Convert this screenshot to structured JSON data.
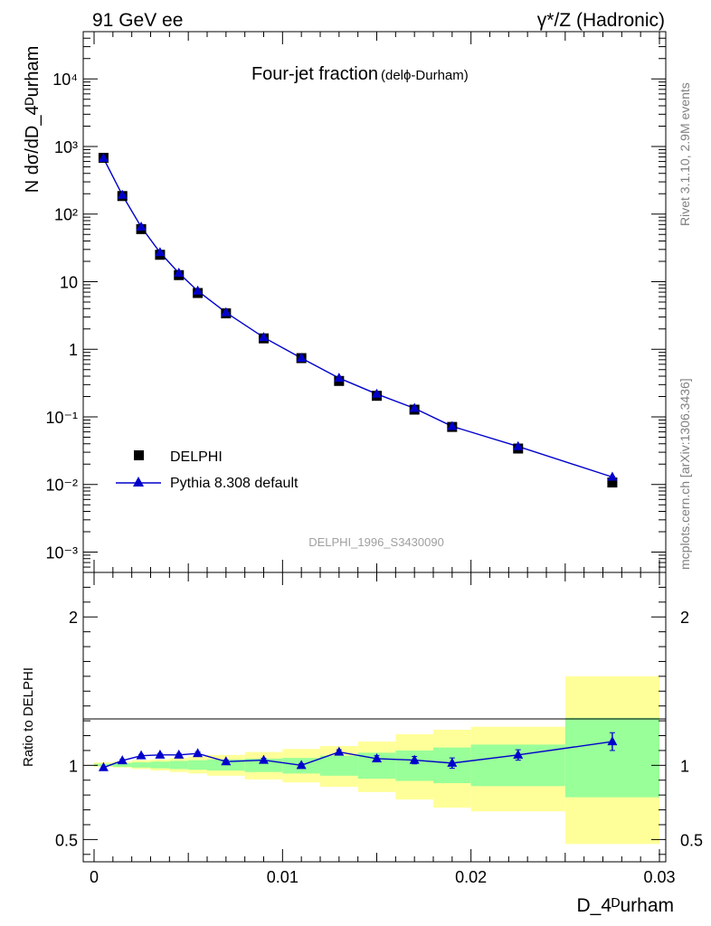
{
  "header": {
    "left": "91 GeV ee",
    "right": "γ*/Z (Hadronic)"
  },
  "side_labels": {
    "rivet": "Rivet 3.1.10,  2.9M events",
    "mcplots": "mcplots.cern.ch [arXiv:1306.3436]"
  },
  "watermark": "DELPHI_1996_S3430090",
  "colors": {
    "data": "#000000",
    "mc": "#0000cc",
    "band_outer": "#ffff99",
    "band_inner": "#99ff99"
  },
  "chart_data": [
    {
      "type": "scatter",
      "panel": "main",
      "title_main": "Four-jet fraction",
      "title_sub": "(delϕ-Durham)",
      "ylabel": "N dσ/dD_4ᴰurham",
      "yscale": "log",
      "xlim": [
        -0.001,
        0.03
      ],
      "ylim": [
        0.0005,
        50000
      ],
      "y_ticks": [
        "10⁻³",
        "10⁻²",
        "10⁻¹",
        "1",
        "10",
        "10²",
        "10³",
        "10⁴"
      ],
      "legend_position": "bottom-left",
      "x": [
        0.0005,
        0.0015,
        0.0025,
        0.0035,
        0.0045,
        0.0055,
        0.007,
        0.009,
        0.011,
        0.013,
        0.015,
        0.017,
        0.019,
        0.0225,
        0.0275
      ],
      "series": [
        {
          "name": "DELPHI",
          "marker": "square",
          "values": [
            680,
            185,
            60,
            25,
            12.5,
            6.8,
            3.4,
            1.45,
            0.74,
            0.34,
            0.205,
            0.128,
            0.071,
            0.034,
            0.0107
          ]
        },
        {
          "name": "Pythia 8.308 default",
          "marker": "triangle",
          "values": [
            670,
            191,
            64.5,
            27,
            13.4,
            7.3,
            3.5,
            1.5,
            0.74,
            0.375,
            0.218,
            0.134,
            0.0725,
            0.0365,
            0.0129
          ]
        }
      ]
    },
    {
      "type": "line",
      "panel": "ratio",
      "ylabel": "Ratio to DELPHI",
      "xlabel": "D_4ᴰurham",
      "xlim": [
        -0.001,
        0.03
      ],
      "ylim": [
        0.35,
        2.3
      ],
      "x_ticks": [
        "0",
        "0.01",
        "0.02",
        "0.03"
      ],
      "y_ticks": [
        "0.5",
        "1",
        "2"
      ],
      "bins": [
        [
          0,
          0.001
        ],
        [
          0.001,
          0.002
        ],
        [
          0.002,
          0.003
        ],
        [
          0.003,
          0.004
        ],
        [
          0.004,
          0.005
        ],
        [
          0.005,
          0.006
        ],
        [
          0.006,
          0.008
        ],
        [
          0.008,
          0.01
        ],
        [
          0.01,
          0.012
        ],
        [
          0.012,
          0.014
        ],
        [
          0.014,
          0.016
        ],
        [
          0.016,
          0.018
        ],
        [
          0.018,
          0.02
        ],
        [
          0.02,
          0.025
        ],
        [
          0.025,
          0.03
        ]
      ],
      "band_outer": [
        [
          0.99,
          1.02
        ],
        [
          0.985,
          1.025
        ],
        [
          0.975,
          1.035
        ],
        [
          0.965,
          1.04
        ],
        [
          0.955,
          1.05
        ],
        [
          0.945,
          1.06
        ],
        [
          0.93,
          1.07
        ],
        [
          0.905,
          1.09
        ],
        [
          0.885,
          1.11
        ],
        [
          0.855,
          1.13
        ],
        [
          0.82,
          1.16
        ],
        [
          0.77,
          1.21
        ],
        [
          0.715,
          1.24
        ],
        [
          0.69,
          1.26
        ],
        [
          0.47,
          1.6
        ]
      ],
      "band_inner": [
        [
          0.995,
          1.01
        ],
        [
          0.99,
          1.015
        ],
        [
          0.985,
          1.02
        ],
        [
          0.98,
          1.025
        ],
        [
          0.975,
          1.03
        ],
        [
          0.97,
          1.035
        ],
        [
          0.965,
          1.04
        ],
        [
          0.955,
          1.045
        ],
        [
          0.945,
          1.05
        ],
        [
          0.93,
          1.065
        ],
        [
          0.91,
          1.085
        ],
        [
          0.895,
          1.1
        ],
        [
          0.88,
          1.12
        ],
        [
          0.86,
          1.14
        ],
        [
          0.785,
          1.32
        ]
      ],
      "x": [
        0.0005,
        0.0015,
        0.0025,
        0.0035,
        0.0045,
        0.0055,
        0.007,
        0.009,
        0.011,
        0.013,
        0.015,
        0.017,
        0.019,
        0.0225,
        0.0275
      ],
      "series": [
        {
          "name": "Pythia 8.308 default",
          "values": [
            0.985,
            1.032,
            1.065,
            1.07,
            1.07,
            1.08,
            1.025,
            1.035,
            1.0,
            1.09,
            1.045,
            1.035,
            1.015,
            1.07,
            1.16
          ],
          "errors": [
            0.005,
            0.008,
            0.008,
            0.01,
            0.01,
            0.01,
            0.01,
            0.012,
            0.012,
            0.015,
            0.02,
            0.025,
            0.035,
            0.035,
            0.06
          ]
        }
      ]
    }
  ]
}
